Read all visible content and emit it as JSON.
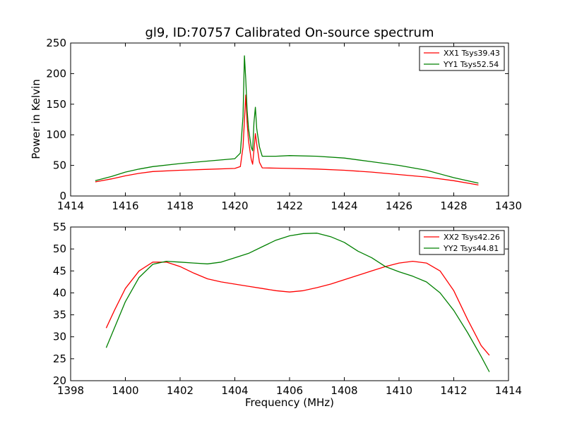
{
  "chart_data": [
    {
      "type": "line",
      "title": "gl9, ID:70757 Calibrated On-source spectrum",
      "xlabel": "",
      "ylabel": "Power in Kelvin",
      "xlim": [
        1414,
        1430
      ],
      "ylim": [
        0,
        250
      ],
      "xticks": [
        "1414",
        "1416",
        "1418",
        "1420",
        "1422",
        "1424",
        "1426",
        "1428",
        "1430"
      ],
      "yticks": [
        "0",
        "50",
        "100",
        "150",
        "200",
        "250"
      ],
      "grid": false,
      "legend_position": "top-right",
      "series": [
        {
          "name": "XX1 Tsys39.43",
          "color": "#ff0000",
          "x": [
            1414.9,
            1415.5,
            1416,
            1416.5,
            1417,
            1418,
            1419,
            1420,
            1420.2,
            1420.3,
            1420.4,
            1420.45,
            1420.5,
            1420.6,
            1420.65,
            1420.7,
            1420.75,
            1420.8,
            1420.9,
            1421,
            1421.5,
            1422,
            1423,
            1424,
            1425,
            1426,
            1427,
            1428,
            1428.9
          ],
          "y": [
            23,
            28,
            33,
            37,
            40,
            42,
            43.5,
            45,
            48,
            80,
            165,
            120,
            90,
            60,
            52,
            75,
            102,
            85,
            55,
            46,
            45.5,
            45,
            44,
            42,
            39,
            35,
            31,
            25,
            18
          ]
        },
        {
          "name": "YY1 Tsys52.54",
          "color": "#008000",
          "x": [
            1414.9,
            1415.5,
            1416,
            1416.5,
            1417,
            1418,
            1419,
            1420,
            1420.2,
            1420.3,
            1420.35,
            1420.4,
            1420.45,
            1420.5,
            1420.6,
            1420.65,
            1420.7,
            1420.75,
            1420.8,
            1420.9,
            1421,
            1421.5,
            1422,
            1423,
            1424,
            1425,
            1426,
            1427,
            1428,
            1428.9
          ],
          "y": [
            25,
            32,
            39,
            44,
            48,
            53,
            57,
            61,
            70,
            130,
            229,
            190,
            140,
            110,
            80,
            74,
            120,
            145,
            110,
            80,
            65,
            65,
            66,
            65,
            62,
            56,
            50,
            42,
            30,
            21
          ]
        }
      ]
    },
    {
      "type": "line",
      "title": "",
      "xlabel": "Frequency (MHz)",
      "ylabel": "",
      "xlim": [
        1398,
        1414
      ],
      "ylim": [
        20,
        55
      ],
      "xticks": [
        "1398",
        "1400",
        "1402",
        "1404",
        "1406",
        "1408",
        "1410",
        "1412",
        "1414"
      ],
      "yticks": [
        "20",
        "25",
        "30",
        "35",
        "40",
        "45",
        "50",
        "55"
      ],
      "grid": false,
      "legend_position": "top-right",
      "series": [
        {
          "name": "XX2 Tsys42.26",
          "color": "#ff0000",
          "x": [
            1399.3,
            1399.6,
            1400,
            1400.5,
            1401,
            1401.5,
            1402,
            1402.5,
            1403,
            1403.5,
            1404,
            1404.5,
            1405,
            1405.5,
            1406,
            1406.5,
            1407,
            1407.5,
            1408,
            1408.5,
            1409,
            1409.5,
            1410,
            1410.5,
            1411,
            1411.5,
            1412,
            1412.5,
            1413,
            1413.3
          ],
          "y": [
            32,
            36,
            41,
            45,
            47,
            47,
            46,
            44.5,
            43.2,
            42.5,
            42,
            41.5,
            41,
            40.5,
            40.2,
            40.5,
            41.2,
            42,
            43,
            44,
            45,
            46,
            46.8,
            47.2,
            46.8,
            45,
            40.5,
            34,
            28,
            25.8
          ]
        },
        {
          "name": "YY2 Tsys44.81",
          "color": "#008000",
          "x": [
            1399.3,
            1399.6,
            1400,
            1400.5,
            1401,
            1401.5,
            1402,
            1402.5,
            1403,
            1403.5,
            1404,
            1404.5,
            1405,
            1405.5,
            1406,
            1406.5,
            1407,
            1407.5,
            1408,
            1408.5,
            1409,
            1409.5,
            1410,
            1410.5,
            1411,
            1411.5,
            1412,
            1412.5,
            1413,
            1413.3
          ],
          "y": [
            27.5,
            32,
            38,
            43.5,
            46.5,
            47.2,
            47,
            46.8,
            46.6,
            47,
            48,
            49,
            50.5,
            52,
            53,
            53.5,
            53.6,
            52.8,
            51.5,
            49.5,
            48,
            46,
            44.8,
            43.8,
            42.5,
            40,
            36,
            31,
            25.5,
            22
          ]
        }
      ]
    }
  ]
}
